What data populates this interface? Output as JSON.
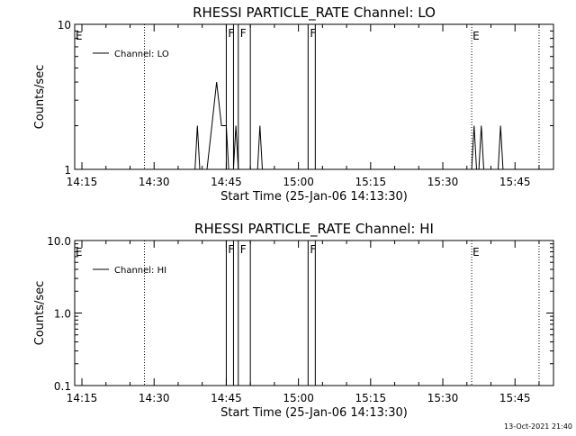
{
  "chart_data": [
    {
      "type": "line",
      "title": "RHESSI PARTICLE_RATE Channel: LO",
      "xlabel": "Start Time (25-Jan-06 14:13:30)",
      "ylabel": "Counts/sec",
      "x_ticks": [
        "14:15",
        "14:30",
        "14:45",
        "15:00",
        "15:15",
        "15:30",
        "15:45"
      ],
      "y_scale": "log",
      "ylim": [
        1,
        10
      ],
      "y_ticks": [
        "1",
        "10"
      ],
      "legend": {
        "placement": "top-left",
        "entries": [
          "Channel: LO"
        ]
      },
      "grid": false,
      "series": [
        {
          "name": "Channel: LO",
          "points": [
            [
              "14:38:30",
              1
            ],
            [
              "14:39:00",
              2
            ],
            [
              "14:39:30",
              1
            ],
            [
              "14:41:00",
              1
            ],
            [
              "14:42:00",
              2
            ],
            [
              "14:43:00",
              4
            ],
            [
              "14:44:00",
              2
            ],
            [
              "14:45:00",
              2
            ],
            [
              "14:45:30",
              1
            ],
            [
              "14:46:30",
              1
            ],
            [
              "14:47:00",
              2
            ],
            [
              "14:47:30",
              1
            ],
            [
              "14:51:30",
              1
            ],
            [
              "14:52:00",
              2
            ],
            [
              "14:52:30",
              1
            ],
            [
              "15:36:00",
              1
            ],
            [
              "15:36:30",
              2
            ],
            [
              "15:37:00",
              1
            ],
            [
              "15:37:30",
              1
            ],
            [
              "15:38:00",
              2
            ],
            [
              "15:38:30",
              1
            ],
            [
              "15:41:30",
              1
            ],
            [
              "15:42:00",
              2
            ],
            [
              "15:42:30",
              1
            ]
          ]
        }
      ]
    },
    {
      "type": "line",
      "title": "RHESSI PARTICLE_RATE Channel: HI",
      "xlabel": "Start Time (25-Jan-06 14:13:30)",
      "ylabel": "Counts/sec",
      "x_ticks": [
        "14:15",
        "14:30",
        "14:45",
        "15:00",
        "15:15",
        "15:30",
        "15:45"
      ],
      "y_scale": "log",
      "ylim": [
        0.1,
        10
      ],
      "y_ticks": [
        "0.1",
        "1.0",
        "10.0"
      ],
      "legend": {
        "placement": "top-left",
        "entries": [
          "Channel: HI"
        ]
      },
      "grid": false,
      "series": [
        {
          "name": "Channel: HI",
          "points": []
        }
      ]
    }
  ],
  "markers": {
    "eclipse_start": [
      "14:13:30",
      "15:36:00"
    ],
    "eclipse_end": [
      "14:28:00"
    ],
    "eclipse_end_last": "15:50:00",
    "eclipse_label": "E",
    "saa_label": "F",
    "saa_intervals": [
      [
        "14:45:00",
        "14:46:30"
      ],
      [
        "14:47:30",
        "14:50:00"
      ],
      [
        "15:02:00",
        "15:03:30"
      ]
    ]
  },
  "timestamp": "13-Oct-2021 21:40"
}
